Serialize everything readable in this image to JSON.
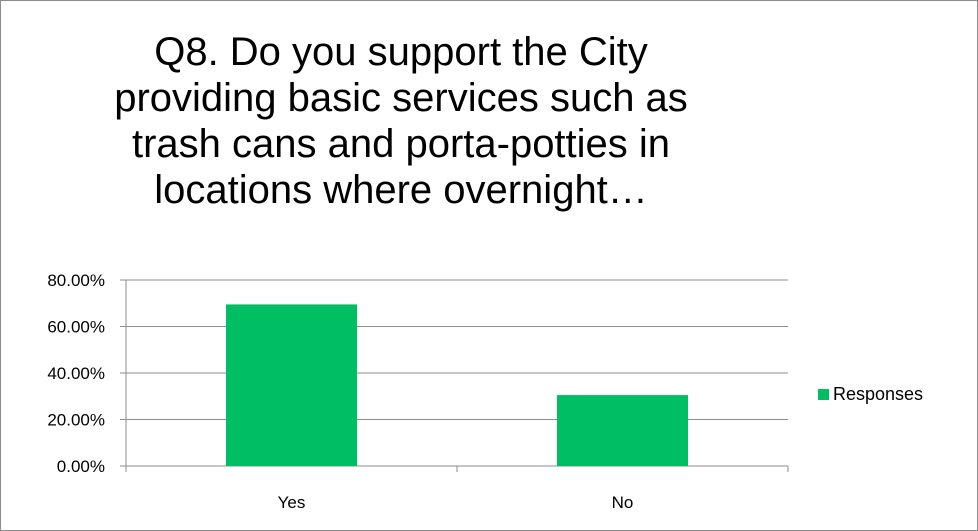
{
  "chart_data": {
    "type": "bar",
    "title": "Q8. Do you support the City providing basic services such as trash cans and porta-potties in locations where overnight…",
    "categories": [
      "Yes",
      "No"
    ],
    "series": [
      {
        "name": "Responses",
        "values": [
          69.5,
          30.5
        ],
        "color": "#00bf63"
      }
    ],
    "ylim": [
      0,
      80
    ],
    "yticks": [
      0,
      20,
      40,
      60,
      80
    ],
    "ytick_labels": [
      "0.00%",
      "20.00%",
      "40.00%",
      "60.00%",
      "80.00%"
    ],
    "grid": true,
    "legend_position": "right",
    "xlabel": "",
    "ylabel": ""
  }
}
